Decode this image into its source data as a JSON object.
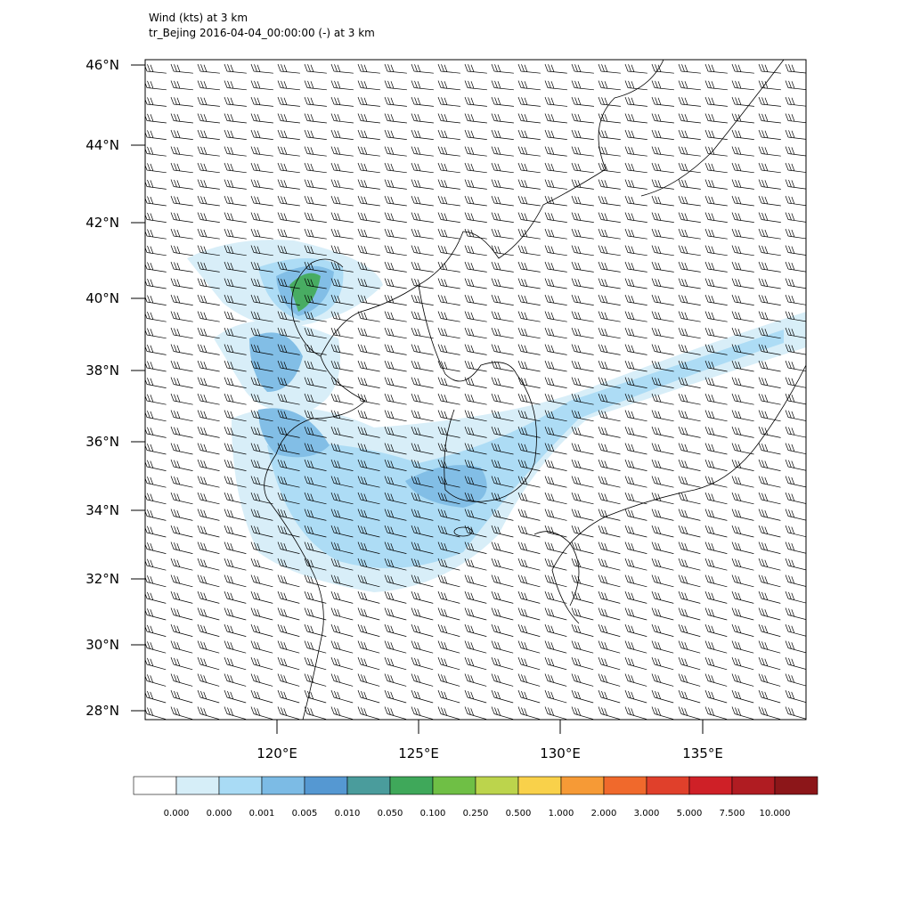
{
  "header": {
    "line1": "Wind   (kts)     at   3 km",
    "line2": "tr_Bejing  2016-04-04_00:00:00   (-)     at   3 km"
  },
  "map": {
    "lat_labels": [
      "46°N",
      "44°N",
      "42°N",
      "40°N",
      "38°N",
      "36°N",
      "34°N",
      "32°N",
      "30°N",
      "28°N"
    ],
    "lon_labels": [
      "120°E",
      "125°E",
      "130°E",
      "135°E"
    ]
  },
  "colorbar": {
    "colors": [
      "#ffffff",
      "#d6eef8",
      "#a9dbf5",
      "#7cbbe5",
      "#5598d2",
      "#4a9c9c",
      "#3fa85a",
      "#6fbf45",
      "#bcd44c",
      "#f9d14a",
      "#f69a36",
      "#f0692c",
      "#e0402b",
      "#cf2027",
      "#b01c22",
      "#8c1619"
    ],
    "labels": [
      "0.000",
      "0.000",
      "0.001",
      "0.005",
      "0.010",
      "0.050",
      "0.100",
      "0.250",
      "0.500",
      "1.000",
      "2.000",
      "3.000",
      "5.000",
      "7.500",
      "10.000"
    ]
  }
}
